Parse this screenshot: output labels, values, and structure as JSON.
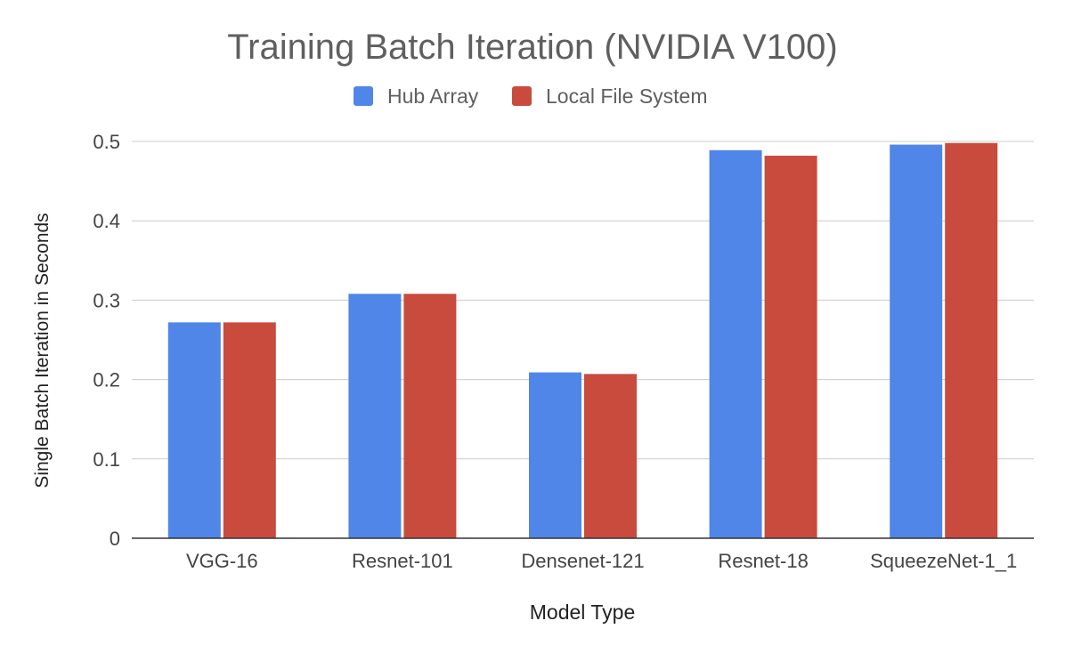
{
  "chart_data": {
    "type": "bar",
    "title": "Training Batch Iteration (NVIDIA V100)",
    "xlabel": "Model Type",
    "ylabel": "Single Batch Iteration in Seconds",
    "categories": [
      "VGG-16",
      "Resnet-101",
      "Densenet-121",
      "Resnet-18",
      "SqueezeNet-1_1"
    ],
    "series": [
      {
        "name": "Hub Array",
        "color": "#4f86e8",
        "values": [
          0.272,
          0.308,
          0.209,
          0.489,
          0.496
        ]
      },
      {
        "name": "Local File System",
        "color": "#c84b3e",
        "values": [
          0.272,
          0.308,
          0.207,
          0.482,
          0.498
        ]
      }
    ],
    "ylim": [
      0,
      0.5
    ],
    "yticks": [
      "0",
      "0.1",
      "0.2",
      "0.3",
      "0.4",
      "0.5"
    ],
    "grid": true,
    "legend_position": "top"
  }
}
